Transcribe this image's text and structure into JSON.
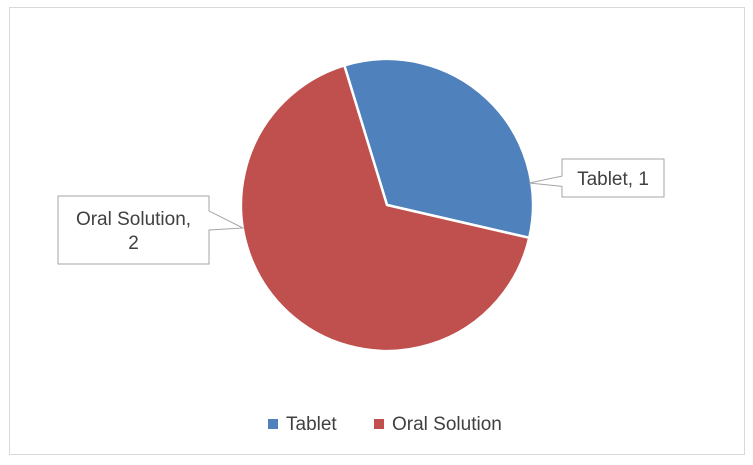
{
  "chart_data": {
    "type": "pie",
    "title": "",
    "categories": [
      "Tablet",
      "Oral Solution"
    ],
    "values": [
      1,
      2
    ],
    "colors": [
      "#4f81bd",
      "#c0504d"
    ],
    "data_labels": [
      {
        "category": "Tablet",
        "value": 1,
        "text": [
          "Tablet, 1"
        ]
      },
      {
        "category": "Oral Solution",
        "value": 2,
        "text": [
          "Oral Solution,",
          "2"
        ]
      }
    ],
    "legend": {
      "position": "bottom",
      "entries": [
        "Tablet",
        "Oral Solution"
      ]
    }
  }
}
